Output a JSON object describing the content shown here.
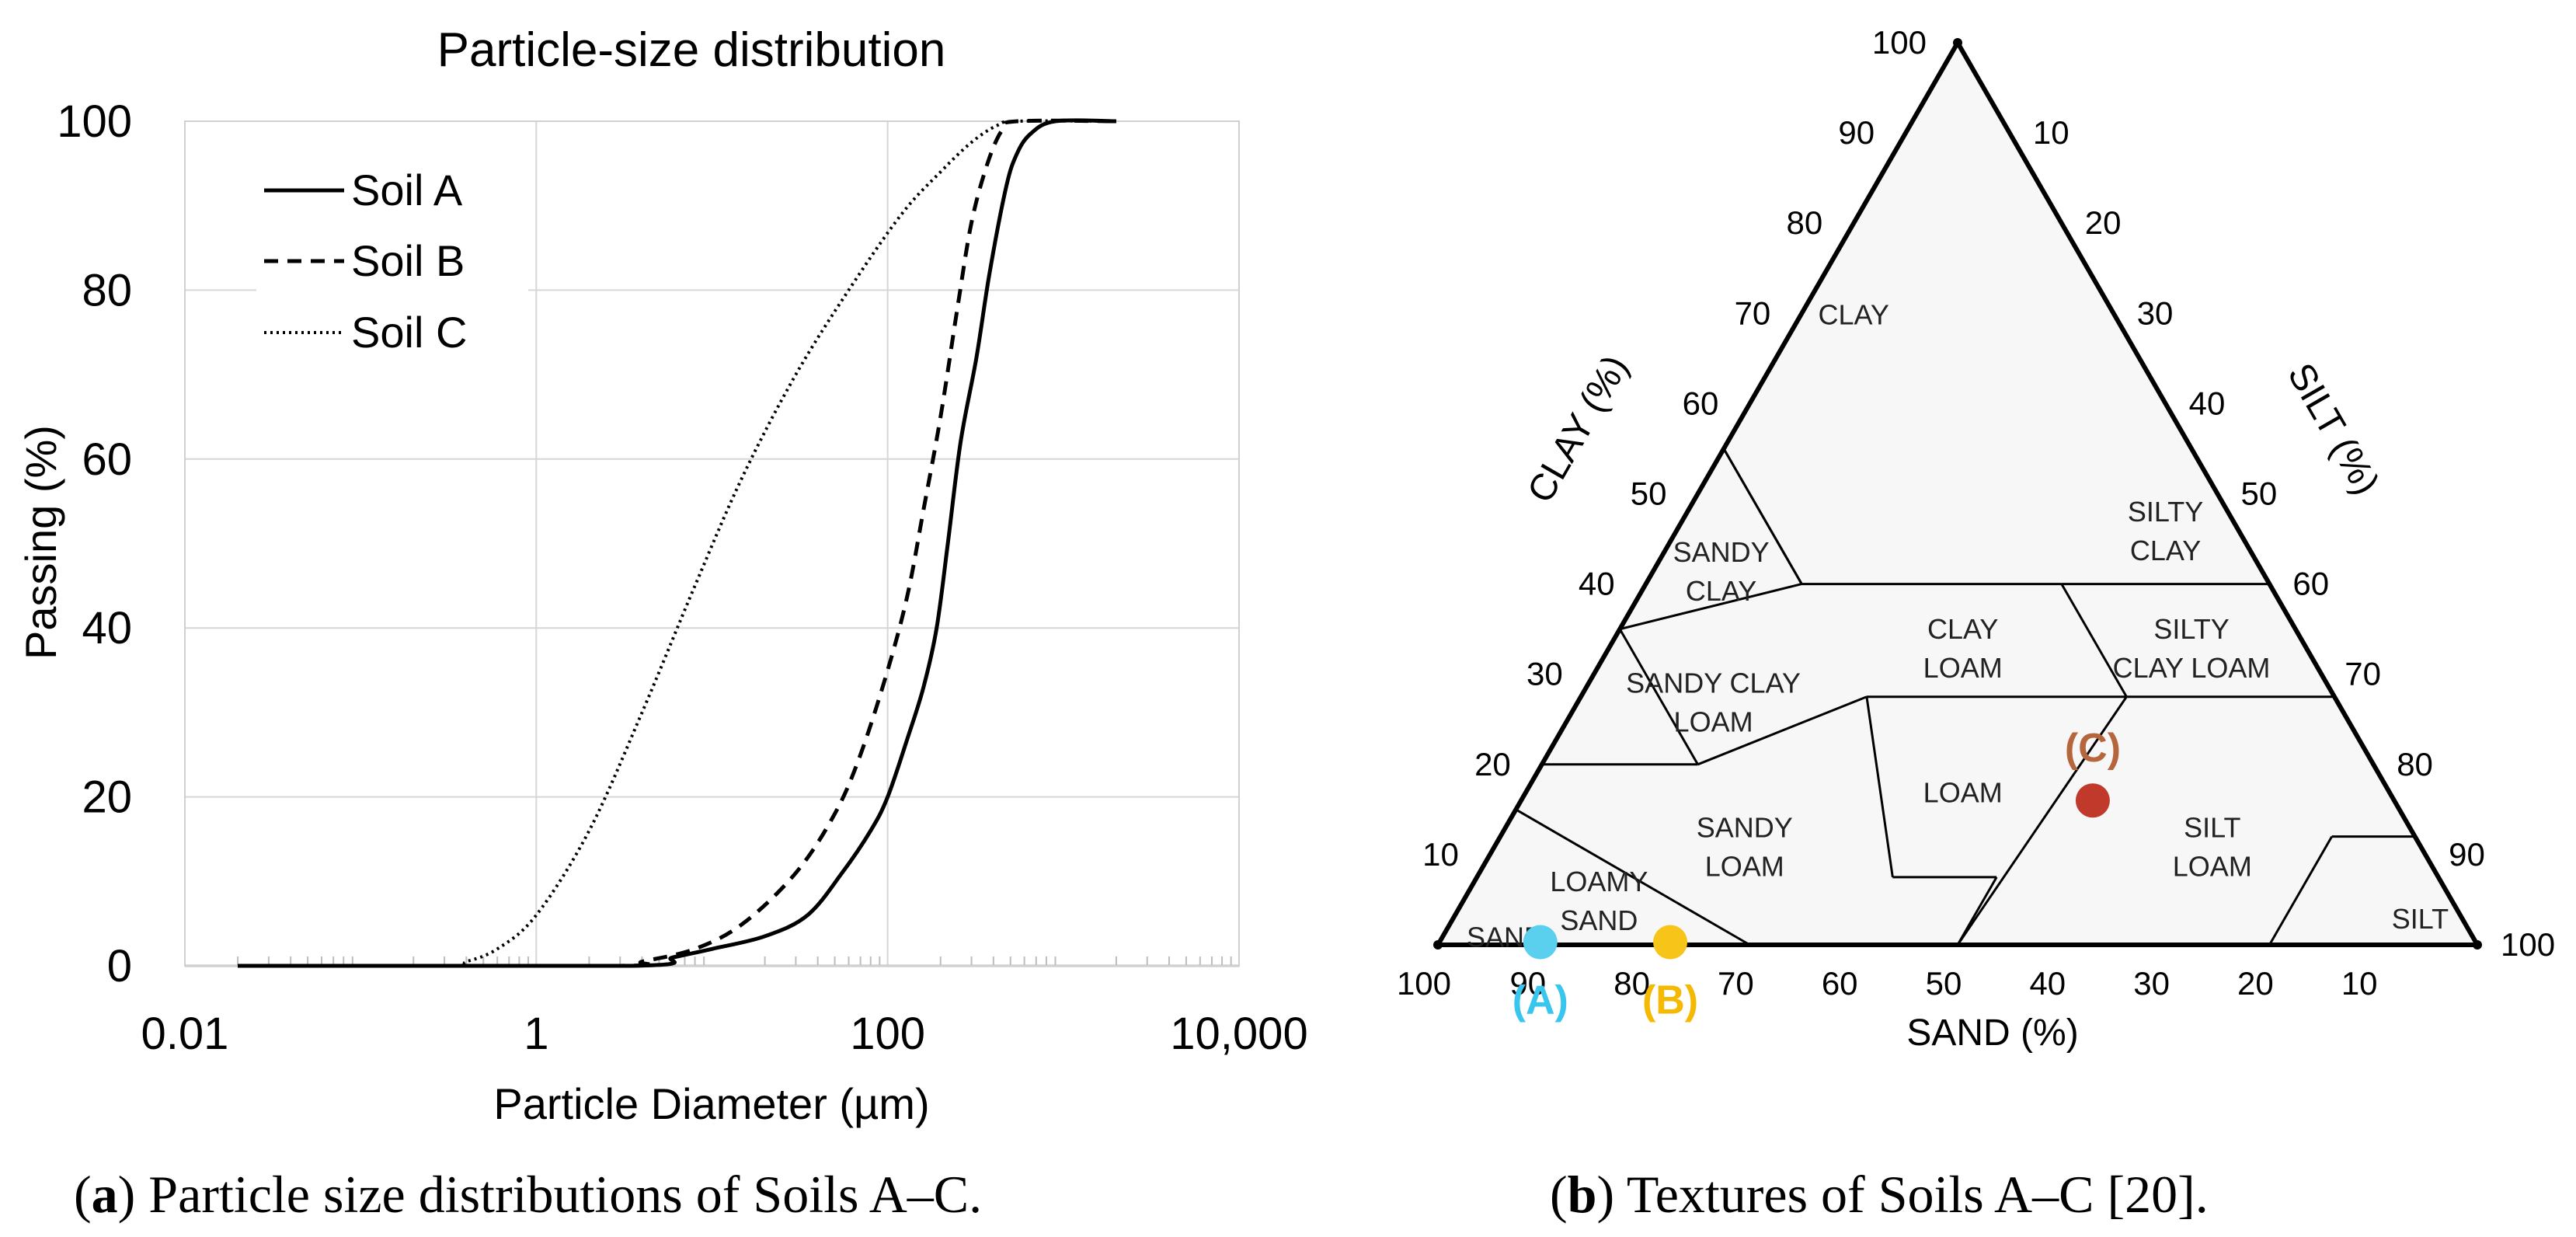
{
  "chart_data": [
    {
      "type": "line",
      "title": "Particle-size distribution",
      "xlabel": "Particle Diameter (µm)",
      "ylabel": "Passing (%)",
      "xscale": "log",
      "xlim": [
        0.01,
        10000
      ],
      "ylim": [
        0,
        100
      ],
      "xticks": [
        0.01,
        1,
        100,
        10000
      ],
      "xtick_labels": [
        "0.01",
        "1",
        "100",
        "10,000"
      ],
      "yticks": [
        0,
        20,
        40,
        60,
        80,
        100
      ],
      "ytick_labels": [
        "0",
        "20",
        "40",
        "60",
        "80",
        "100"
      ],
      "grid": true,
      "legend_position": "top-left",
      "series": [
        {
          "name": "Soil A",
          "style": "solid",
          "points": [
            [
              0.02,
              0
            ],
            [
              3.5,
              0
            ],
            [
              6,
              1
            ],
            [
              10,
              2
            ],
            [
              20,
              3.5
            ],
            [
              35,
              6
            ],
            [
              55,
              11
            ],
            [
              80,
              16
            ],
            [
              100,
              20
            ],
            [
              130,
              27
            ],
            [
              160,
              33
            ],
            [
              190,
              40
            ],
            [
              220,
              50
            ],
            [
              260,
              62
            ],
            [
              320,
              72
            ],
            [
              380,
              82
            ],
            [
              470,
              92
            ],
            [
              540,
              96
            ],
            [
              650,
              98.5
            ],
            [
              900,
              100
            ],
            [
              2000,
              100
            ]
          ]
        },
        {
          "name": "Soil B",
          "style": "dashed",
          "points": [
            [
              0.02,
              0
            ],
            [
              3,
              0
            ],
            [
              4,
              0.5
            ],
            [
              8,
              2
            ],
            [
              15,
              5
            ],
            [
              30,
              11
            ],
            [
              50,
              18
            ],
            [
              70,
              25
            ],
            [
              100,
              35
            ],
            [
              130,
              44
            ],
            [
              160,
              54
            ],
            [
              200,
              65
            ],
            [
              250,
              78
            ],
            [
              300,
              88
            ],
            [
              370,
              95
            ],
            [
              450,
              99
            ],
            [
              550,
              100
            ],
            [
              2000,
              100
            ]
          ]
        },
        {
          "name": "Soil C",
          "style": "dotted",
          "points": [
            [
              0.02,
              0
            ],
            [
              0.3,
              0
            ],
            [
              0.4,
              0.5
            ],
            [
              0.6,
              2
            ],
            [
              1,
              6
            ],
            [
              2,
              16
            ],
            [
              4,
              30
            ],
            [
              8,
              45
            ],
            [
              15,
              58
            ],
            [
              30,
              70
            ],
            [
              60,
              80
            ],
            [
              120,
              89
            ],
            [
              200,
              94
            ],
            [
              300,
              97.5
            ],
            [
              420,
              99.5
            ],
            [
              550,
              100
            ],
            [
              2000,
              100
            ]
          ]
        }
      ]
    },
    {
      "type": "ternary",
      "axes": {
        "clay_label": "CLAY (%)",
        "silt_label": "SILT (%)",
        "sand_label": "SAND (%)"
      },
      "clay_tick_labels": [
        "10",
        "20",
        "30",
        "40",
        "50",
        "60",
        "70",
        "80",
        "90",
        "100"
      ],
      "silt_tick_labels": [
        "10",
        "20",
        "30",
        "40",
        "50",
        "60",
        "70",
        "80",
        "90",
        "100"
      ],
      "sand_tick_labels": [
        "10",
        "20",
        "30",
        "40",
        "50",
        "60",
        "70",
        "80",
        "90",
        "100"
      ],
      "regions": [
        {
          "name": "CLAY",
          "lines": [
            "CLAY"
          ]
        },
        {
          "name": "SANDY CLAY",
          "lines": [
            "SANDY",
            "CLAY"
          ]
        },
        {
          "name": "SILTY CLAY",
          "lines": [
            "SILTY",
            "CLAY"
          ]
        },
        {
          "name": "CLAY LOAM",
          "lines": [
            "CLAY",
            "LOAM"
          ]
        },
        {
          "name": "SILTY CLAY LOAM",
          "lines": [
            "SILTY",
            "CLAY LOAM"
          ]
        },
        {
          "name": "SANDY CLAY LOAM",
          "lines": [
            "SANDY CLAY",
            "LOAM"
          ]
        },
        {
          "name": "LOAM",
          "lines": [
            "LOAM"
          ]
        },
        {
          "name": "SANDY LOAM",
          "lines": [
            "SANDY",
            "LOAM"
          ]
        },
        {
          "name": "SILT LOAM",
          "lines": [
            "SILT",
            "LOAM"
          ]
        },
        {
          "name": "LOAMY SAND",
          "lines": [
            "LOAMY",
            "SAND"
          ]
        },
        {
          "name": "SAND",
          "lines": [
            "SAND"
          ]
        },
        {
          "name": "SILT",
          "lines": [
            "SILT"
          ]
        }
      ],
      "points": [
        {
          "label": "(A)",
          "sand": 90,
          "clay": 0.3,
          "color": "#5ad0ee"
        },
        {
          "label": "(B)",
          "sand": 77.5,
          "clay": 0.3,
          "color": "#f7c419"
        },
        {
          "label": "(C)",
          "sand": 29,
          "clay": 16,
          "color": "#c0392b",
          "label_color": "#b5663d"
        }
      ],
      "point_label_colors": {
        "A": "#39c6ee",
        "B": "#f4b900",
        "C": "#b5663d"
      }
    }
  ],
  "captions": {
    "a_bold": "a",
    "a_rest": ") Particle size distributions of Soils A–C.",
    "b_bold": "b",
    "b_rest": ") Textures of Soils A–C [20]."
  }
}
